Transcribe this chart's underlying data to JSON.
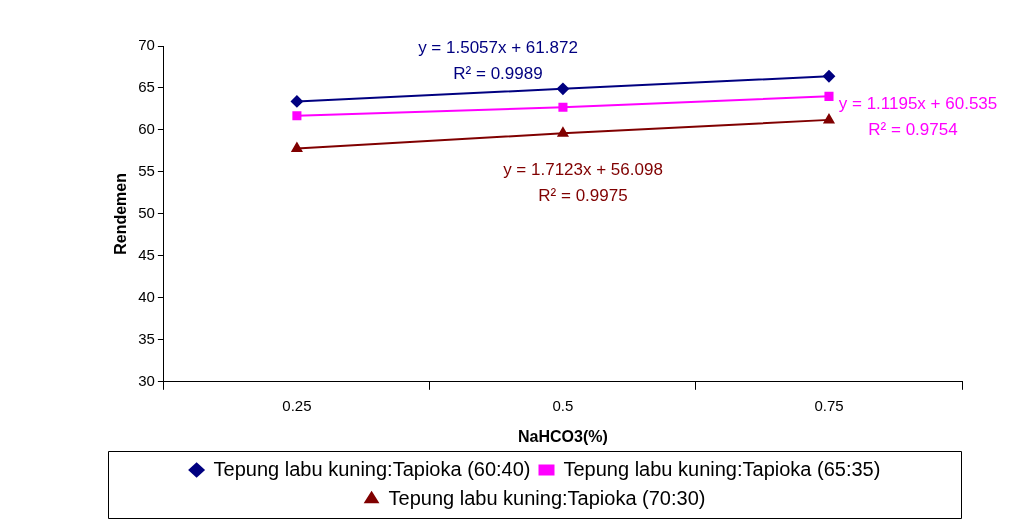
{
  "chart_data": {
    "type": "line",
    "xlabel": "NaHCO3(%)",
    "ylabel": "Rendemen",
    "categories": [
      "0.25",
      "0.5",
      "0.75"
    ],
    "series": [
      {
        "name": "Tepung labu kuning:Tapioka (60:40)",
        "color": "#000080",
        "marker": "diamond",
        "values": [
          63.4,
          64.9,
          66.4
        ]
      },
      {
        "name": "Tepung labu kuning:Tapioka (65:35)",
        "color": "#ff00ff",
        "marker": "square",
        "values": [
          61.7,
          62.7,
          64.0
        ]
      },
      {
        "name": "Tepung labu kuning:Tapioka (70:30)",
        "color": "#800000",
        "marker": "triangle",
        "values": [
          57.8,
          59.6,
          61.2
        ]
      }
    ],
    "ylim": [
      30,
      70
    ],
    "yticks": [
      30,
      35,
      40,
      45,
      50,
      55,
      60,
      65,
      70
    ],
    "grid": false,
    "legend": "bottom",
    "annotations": [
      "y = 1.5057x + 61.872",
      "R² = 0.9989",
      "y = 1.1195x + 60.535",
      "R² = 0.9754",
      "y = 1.7123x + 56.098",
      "R² = 0.9975"
    ]
  }
}
